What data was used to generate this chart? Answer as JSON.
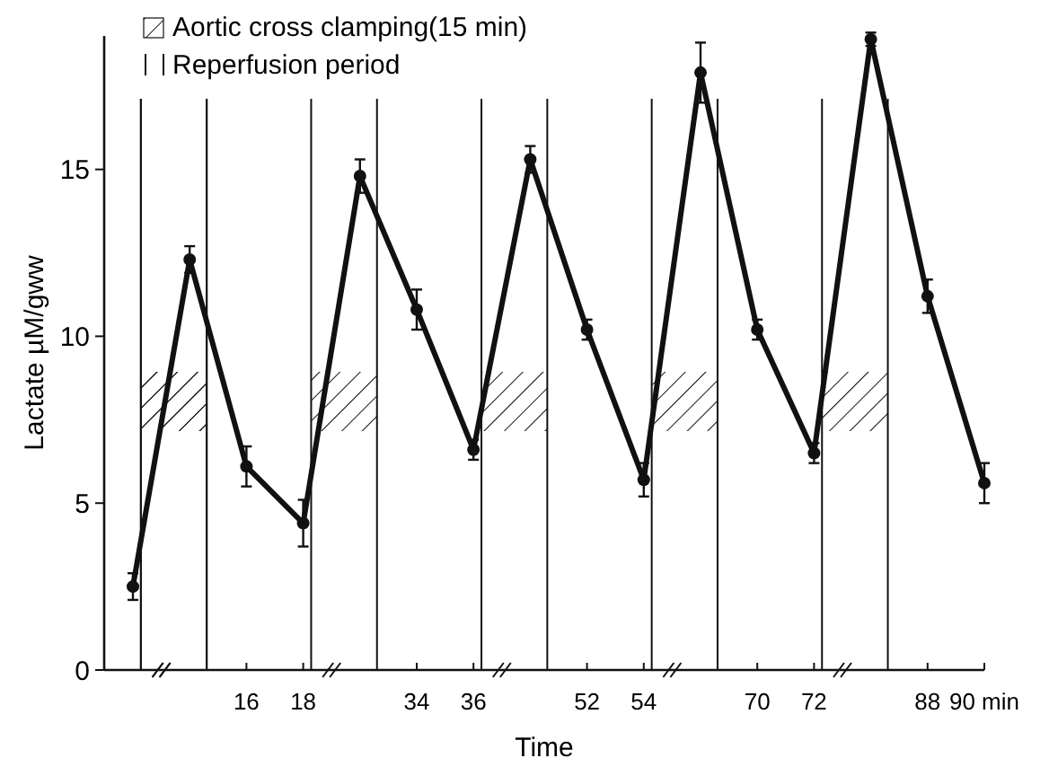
{
  "chart_data": {
    "type": "line",
    "xlabel": "Time",
    "ylabel": "Lactate µM/gww",
    "categories": [
      null,
      null,
      "16",
      "18",
      null,
      "34",
      "36",
      null,
      "52",
      "54",
      null,
      "70",
      "72",
      null,
      "88",
      "90 min"
    ],
    "series": [
      {
        "color": "#111111",
        "values": [
          2.5,
          12.3,
          6.1,
          4.4,
          14.8,
          10.8,
          6.6,
          15.3,
          10.2,
          5.7,
          17.9,
          10.2,
          6.5,
          18.9,
          11.2,
          5.6
        ],
        "errors": [
          0.4,
          0.4,
          0.6,
          0.7,
          0.5,
          0.6,
          0.3,
          0.4,
          0.3,
          0.5,
          0.9,
          0.3,
          0.3,
          0.2,
          0.5,
          0.6
        ]
      }
    ],
    "ylim": [
      0,
      19
    ],
    "yticks": [
      0,
      5,
      10,
      15
    ],
    "marker": "circle",
    "line_style": "solid",
    "annotations": [
      "Aortic cross clamping(15 min)",
      "Reperfusion period"
    ]
  }
}
